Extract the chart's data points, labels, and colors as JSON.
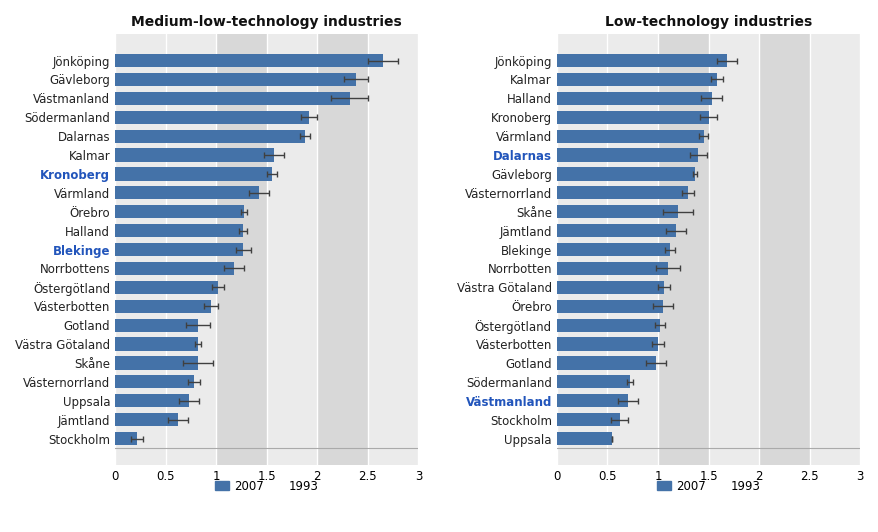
{
  "left_title": "Medium-low-technology industries",
  "right_title": "Low-technology industries",
  "legend_labels": [
    "2007",
    "1993"
  ],
  "left_categories": [
    "Jönköping",
    "Gävleborg",
    "Västmanland",
    "Södermanland",
    "Dalarnas",
    "Kalmar",
    "Kronoberg",
    "Värmland",
    "Örebro",
    "Halland",
    "Blekinge",
    "Norrbottens",
    "Östergötland",
    "Västerbotten",
    "Gotland",
    "Västra Götaland",
    "Skåne",
    "Västernorrland",
    "Uppsala",
    "Jämtland",
    "Stockholm"
  ],
  "left_values": [
    2.65,
    2.38,
    2.32,
    1.92,
    1.88,
    1.57,
    1.55,
    1.42,
    1.28,
    1.27,
    1.27,
    1.18,
    1.02,
    0.95,
    0.82,
    0.82,
    0.82,
    0.78,
    0.73,
    0.62,
    0.22
  ],
  "left_errors": [
    0.15,
    0.12,
    0.18,
    0.08,
    0.05,
    0.1,
    0.05,
    0.1,
    0.03,
    0.04,
    0.07,
    0.1,
    0.06,
    0.07,
    0.12,
    0.03,
    0.15,
    0.06,
    0.1,
    0.1,
    0.06
  ],
  "left_blue_labels": [
    "Kronoberg",
    "Blekinge"
  ],
  "right_categories": [
    "Jönköping",
    "Kalmar",
    "Halland",
    "Kronoberg",
    "Värmland",
    "Dalarnas",
    "Gävleborg",
    "Västernorrland",
    "Skåne",
    "Jämtland",
    "Blekinge",
    "Norrbotten",
    "Västra Götaland",
    "Örebro",
    "Östergötland",
    "Västerbotten",
    "Gotland",
    "Södermanland",
    "Västmanland",
    "Stockholm",
    "Uppsala"
  ],
  "right_values": [
    1.68,
    1.58,
    1.53,
    1.5,
    1.45,
    1.4,
    1.37,
    1.3,
    1.2,
    1.18,
    1.12,
    1.1,
    1.06,
    1.05,
    1.02,
    1.0,
    0.98,
    0.72,
    0.7,
    0.62,
    0.55
  ],
  "right_errors": [
    0.1,
    0.06,
    0.1,
    0.08,
    0.04,
    0.08,
    0.02,
    0.06,
    0.15,
    0.1,
    0.05,
    0.12,
    0.06,
    0.1,
    0.05,
    0.06,
    0.1,
    0.03,
    0.1,
    0.08,
    0.0
  ],
  "right_blue_labels": [
    "Dalarnas",
    "Västmanland"
  ],
  "bar_color": "#4472a8",
  "error_color": "#404040",
  "shade_color_dark": "#d8d8d8",
  "shade_color_light": "#ebebeb",
  "plot_bg_color": "#ebebeb",
  "fig_bg_color": "#ffffff",
  "xlim": [
    0,
    3
  ],
  "xticks": [
    0,
    0.5,
    1,
    1.5,
    2,
    2.5,
    3
  ],
  "title_fontsize": 10,
  "label_fontsize": 8.5,
  "tick_fontsize": 8.5
}
